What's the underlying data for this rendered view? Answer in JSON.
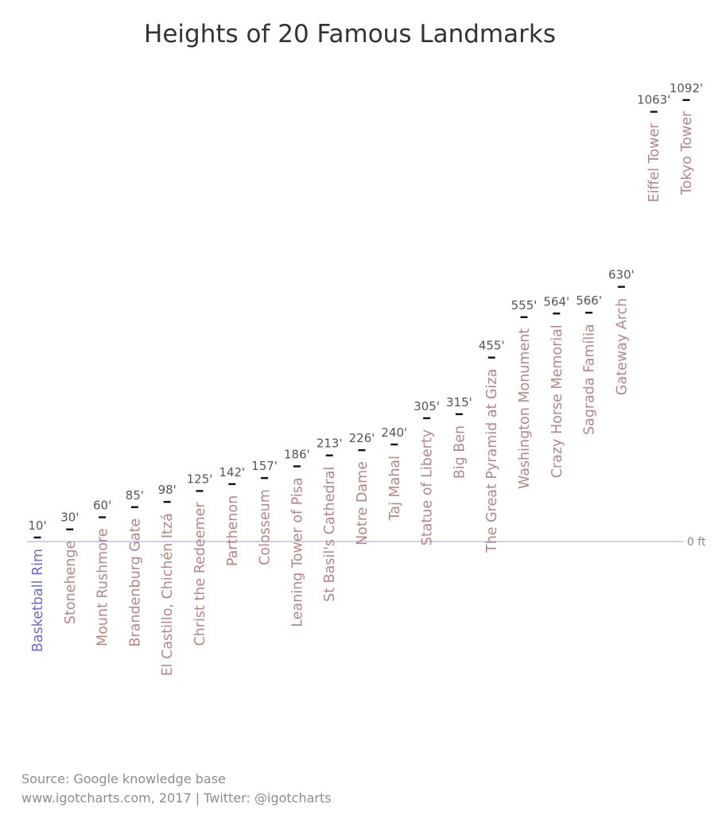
{
  "chart_data": {
    "type": "bar",
    "title": "Heights of 20 Famous Landmarks",
    "unit": "ft",
    "baseline_label": "0 ft",
    "categories": [
      "Basketball Rim",
      "Stonehenge",
      "Mount Rushmore",
      "Brandenburg Gate",
      "El Castillo, Chichén Itzá",
      "Christ the Redeemer",
      "Parthenon",
      "Colosseum",
      "Leaning Tower of Pisa",
      "St Basil's Cathedral",
      "Notre Dame",
      "Taj Mahal",
      "Statue of Liberty",
      "Big Ben",
      "The Great Pyramid at Giza",
      "Washington Monument",
      "Crazy Horse Memorial",
      "Sagrada Família",
      "Gateway Arch",
      "Eiffel Tower",
      "Tokyo Tower"
    ],
    "values": [
      10,
      30,
      60,
      85,
      98,
      125,
      142,
      157,
      186,
      213,
      226,
      240,
      305,
      315,
      455,
      555,
      564,
      566,
      630,
      1063,
      1092
    ],
    "value_labels": [
      "10'",
      "30'",
      "60'",
      "85'",
      "98'",
      "125'",
      "142'",
      "157'",
      "186'",
      "213'",
      "226'",
      "240'",
      "305'",
      "315'",
      "455'",
      "555'",
      "564'",
      "566'",
      "630'",
      "1063'",
      "1092'"
    ],
    "highlight_category": "Basketball Rim",
    "colors": {
      "highlight": "#6b6bd8",
      "label": "#b88585",
      "baseline": "#9f9fdc",
      "marker": "#111111",
      "value_text": "#555555"
    },
    "grid": false,
    "legend": "none"
  },
  "footer": {
    "source": "Source: Google knowledge base",
    "credit": "www.igotcharts.com, 2017 | Twitter: @igotcharts"
  }
}
